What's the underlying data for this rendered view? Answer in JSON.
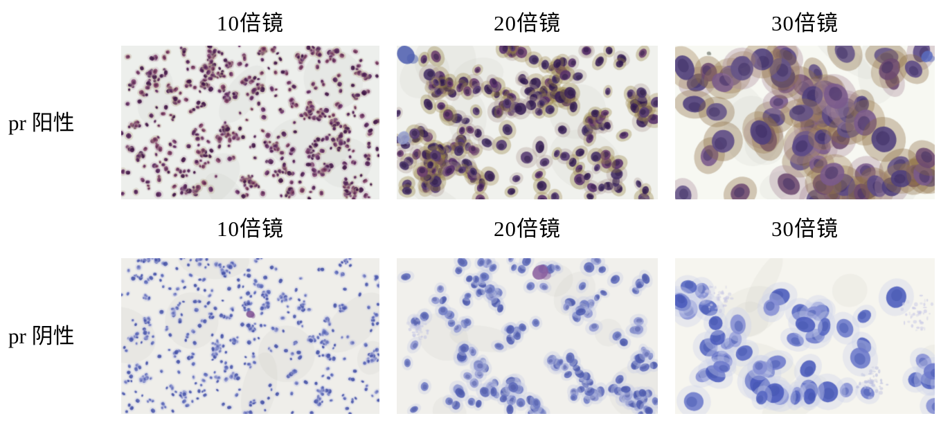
{
  "figure": {
    "page_background": "#ffffff",
    "text_color": "#000000",
    "column_headers": [
      "10倍镜",
      "20倍镜",
      "30倍镜"
    ],
    "rows": [
      {
        "label": "pr 阳性",
        "result": "positive",
        "stain_note": "brown-purple IHC positive nuclear staining",
        "panels": [
          {
            "magnification": "10倍镜",
            "background": "#edefec",
            "nucleus_colors": [
              "#5c2760",
              "#6e336d",
              "#47184c",
              "#7e3f6e",
              "#86436a"
            ],
            "halo_colors": [
              "#b9a98f",
              "#c2aeb8"
            ],
            "core_color": "#2e0f33",
            "cell_radius": [
              2,
              4
            ],
            "cell_count": 660,
            "cluster_count": 72,
            "cluster_size": 8,
            "accents": []
          },
          {
            "magnification": "20倍镜",
            "background": "#f0f1ed",
            "nucleus_colors": [
              "#463067",
              "#58306b",
              "#3a2158",
              "#6b3d6e",
              "#553a72"
            ],
            "halo_colors": [
              "#94803f",
              "#a08a52",
              "#b09a94"
            ],
            "core_color": "#241240",
            "cell_radius": [
              5,
              9
            ],
            "cell_count": 230,
            "cluster_count": 26,
            "cluster_size": 9,
            "accents": [
              {
                "x": 0.035,
                "y": 0.06,
                "r": 14,
                "color": "#4b5cae",
                "kind": "cell"
              },
              {
                "x": 0.025,
                "y": 0.6,
                "r": 10,
                "color": "#97a0cf",
                "kind": "cell"
              }
            ]
          },
          {
            "magnification": "30倍镜",
            "background": "#f7f8f2",
            "nucleus_colors": [
              "#4f3f7d",
              "#5c4a86",
              "#6d4a71",
              "#7a5a8c",
              "#645387"
            ],
            "halo_colors": [
              "#8a6a3e",
              "#9c7a4e",
              "#a98a9a"
            ],
            "core_color": "#37275f",
            "cell_radius": [
              12,
              19
            ],
            "cell_count": 84,
            "cluster_count": 7,
            "cluster_size": 15,
            "accents": [
              {
                "x": 0.97,
                "y": 0.07,
                "r": 9,
                "color": "#5a6cc0",
                "kind": "cell"
              },
              {
                "x": 0.13,
                "y": 0.05,
                "r": 3,
                "color": "#8a8f86",
                "kind": "cell"
              }
            ]
          }
        ]
      },
      {
        "label": "pr 阴性",
        "result": "negative",
        "stain_note": "blue hematoxylin counterstain only, negative",
        "panels": [
          {
            "magnification": "10倍镜",
            "background": "#efeeea",
            "nucleus_colors": [
              "#5461b2",
              "#6a76c1",
              "#8890cd",
              "#4b58ab"
            ],
            "halo_colors": [
              "#c5c9e5"
            ],
            "core_color": "#3c49a0",
            "cell_radius": [
              1.8,
              3.4
            ],
            "cell_count": 560,
            "cluster_count": 58,
            "cluster_size": 7,
            "accents": [
              {
                "x": 0.5,
                "y": 0.36,
                "r": 6,
                "color": "#7d4f92",
                "kind": "cell"
              }
            ]
          },
          {
            "magnification": "20倍镜",
            "background": "#f1f0ec",
            "nucleus_colors": [
              "#5d6aba",
              "#707cc5",
              "#8f97d2",
              "#4e5cb2"
            ],
            "halo_colors": [
              "#c6cae6"
            ],
            "core_color": "#47529f",
            "cell_radius": [
              5,
              8
            ],
            "cell_count": 185,
            "cluster_count": 24,
            "cluster_size": 7,
            "accents": [
              {
                "x": 0.55,
                "y": 0.09,
                "r": 12,
                "color": "#8a5d9e",
                "kind": "cell"
              },
              {
                "x": 0.08,
                "y": 0.45,
                "r": 18,
                "color": "#c4c6e4",
                "kind": "speckle"
              }
            ]
          },
          {
            "magnification": "30倍镜",
            "background": "#f6f5ef",
            "nucleus_colors": [
              "#5565c2",
              "#6c79cb",
              "#8690d4",
              "#4a5abc"
            ],
            "halo_colors": [
              "#ccd0ea"
            ],
            "core_color": "#4152ad",
            "cell_radius": [
              10,
              16
            ],
            "cell_count": 62,
            "cluster_count": 9,
            "cluster_size": 6,
            "accents": [
              {
                "x": 0.16,
                "y": 0.25,
                "r": 22,
                "color": "#c6c6e4",
                "kind": "speckle"
              },
              {
                "x": 0.76,
                "y": 0.8,
                "r": 24,
                "color": "#bfc2e0",
                "kind": "speckle"
              },
              {
                "x": 0.94,
                "y": 0.35,
                "r": 26,
                "color": "#c9c9e6",
                "kind": "speckle"
              }
            ]
          }
        ]
      }
    ]
  }
}
